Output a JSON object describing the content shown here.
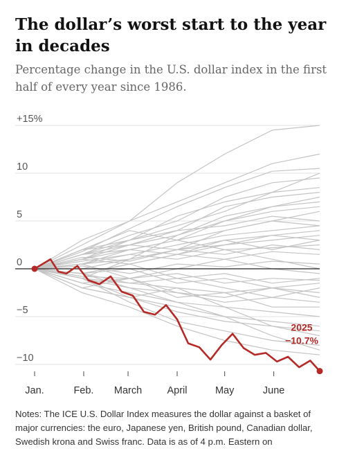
{
  "header": {
    "title": "The dollar’s worst start to the year in decades",
    "subtitle": "Percentage change in the U.S. dollar index in the first half of every year since 1986."
  },
  "notes": "Notes: The ICE U.S. Dollar Index measures the dollar against a basket of major currencies: the euro, Japanese yen, British pound, Canadian dollar, Swedish krona and Swiss franc. Data is as of 4 p.m. Eastern on",
  "colors": {
    "highlight": "#b52a27",
    "background_series": "#c4c4c4",
    "zero_line": "#222222",
    "grid": "#e2e2e2"
  },
  "chart_data": {
    "type": "line",
    "title": "The dollar’s worst start to the year in decades",
    "xlabel": "",
    "ylabel": "",
    "x_tick_labels": [
      "Jan.",
      "Feb.",
      "March",
      "April",
      "May",
      "June"
    ],
    "y_ticks": [
      -10,
      -5,
      0,
      5,
      10,
      15
    ],
    "y_tick_labels": [
      "−10",
      "−5",
      "0",
      "5",
      "10",
      "+15%"
    ],
    "ylim": [
      -11,
      16
    ],
    "xlim_days": [
      0,
      180
    ],
    "grid": true,
    "highlight_series": {
      "name": "2025",
      "end_label_year": "2025",
      "end_label_value": "−10.7%",
      "x": [
        0,
        5,
        10,
        15,
        20,
        27,
        34,
        41,
        48,
        55,
        62,
        69,
        76,
        83,
        90,
        97,
        104,
        111,
        118,
        125,
        132,
        139,
        146,
        153,
        160,
        167,
        174,
        180
      ],
      "y": [
        0,
        0.5,
        1.0,
        -0.3,
        -0.5,
        0.3,
        -1.2,
        -1.6,
        -0.8,
        -2.4,
        -2.8,
        -4.5,
        -4.8,
        -3.8,
        -5.3,
        -7.8,
        -8.2,
        -9.5,
        -8.0,
        -6.8,
        -8.3,
        -9.0,
        -8.8,
        -9.7,
        -9.2,
        -10.3,
        -9.6,
        -10.7
      ]
    },
    "background_series": [
      {
        "x": [
          0,
          30,
          60,
          90,
          120,
          150,
          180
        ],
        "y": [
          0,
          2.5,
          5.0,
          9.0,
          12.0,
          14.5,
          15.0
        ]
      },
      {
        "x": [
          0,
          30,
          60,
          90,
          120,
          150,
          180
        ],
        "y": [
          0,
          1.8,
          4.2,
          6.5,
          8.5,
          10.2,
          10.5
        ]
      },
      {
        "x": [
          0,
          30,
          60,
          90,
          120,
          150,
          180
        ],
        "y": [
          0,
          1.5,
          3.5,
          5.0,
          7.5,
          9.0,
          9.5
        ]
      },
      {
        "x": [
          0,
          30,
          60,
          90,
          120,
          150,
          180
        ],
        "y": [
          0,
          2.0,
          3.0,
          4.5,
          6.0,
          8.0,
          8.5
        ]
      },
      {
        "x": [
          0,
          30,
          60,
          90,
          120,
          150,
          180
        ],
        "y": [
          0,
          1.0,
          2.5,
          3.5,
          5.5,
          6.5,
          7.0
        ]
      },
      {
        "x": [
          0,
          30,
          60,
          90,
          120,
          150,
          180
        ],
        "y": [
          0,
          1.5,
          2.0,
          3.0,
          4.0,
          5.0,
          6.0
        ]
      },
      {
        "x": [
          0,
          30,
          60,
          90,
          120,
          150,
          180
        ],
        "y": [
          0,
          0.5,
          1.5,
          2.5,
          3.5,
          4.0,
          4.5
        ]
      },
      {
        "x": [
          0,
          30,
          60,
          90,
          120,
          150,
          180
        ],
        "y": [
          0,
          1.2,
          0.8,
          2.0,
          2.5,
          3.0,
          3.5
        ]
      },
      {
        "x": [
          0,
          30,
          60,
          90,
          120,
          150,
          180
        ],
        "y": [
          0,
          0.8,
          1.5,
          1.0,
          2.0,
          2.2,
          2.5
        ]
      },
      {
        "x": [
          0,
          30,
          60,
          90,
          120,
          150,
          180
        ],
        "y": [
          0,
          -0.5,
          0.5,
          1.5,
          1.0,
          1.8,
          1.5
        ]
      },
      {
        "x": [
          0,
          30,
          60,
          90,
          120,
          150,
          180
        ],
        "y": [
          0,
          0.3,
          -0.5,
          0.5,
          0.2,
          0.8,
          0.5
        ]
      },
      {
        "x": [
          0,
          30,
          60,
          90,
          120,
          150,
          180
        ],
        "y": [
          0,
          -0.8,
          -1.0,
          -0.5,
          -1.5,
          -1.0,
          -1.2
        ]
      },
      {
        "x": [
          0,
          30,
          60,
          90,
          120,
          150,
          180
        ],
        "y": [
          0,
          -1.0,
          -1.5,
          -2.0,
          -2.5,
          -2.0,
          -2.5
        ]
      },
      {
        "x": [
          0,
          30,
          60,
          90,
          120,
          150,
          180
        ],
        "y": [
          0,
          -0.5,
          -2.0,
          -2.5,
          -3.5,
          -3.0,
          -3.5
        ]
      },
      {
        "x": [
          0,
          30,
          60,
          90,
          120,
          150,
          180
        ],
        "y": [
          0,
          -1.5,
          -2.5,
          -3.5,
          -4.0,
          -4.5,
          -5.0
        ]
      },
      {
        "x": [
          0,
          30,
          60,
          90,
          120,
          150,
          180
        ],
        "y": [
          0,
          -2.0,
          -3.0,
          -4.5,
          -5.5,
          -6.0,
          -6.5
        ]
      },
      {
        "x": [
          0,
          30,
          60,
          90,
          120,
          150,
          180
        ],
        "y": [
          0,
          -1.0,
          -3.5,
          -5.5,
          -6.5,
          -7.5,
          -8.0
        ]
      },
      {
        "x": [
          0,
          30,
          60,
          90,
          120,
          150,
          180
        ],
        "y": [
          0,
          -2.5,
          -4.0,
          -6.0,
          -7.5,
          -8.5,
          -9.0
        ]
      },
      {
        "x": [
          0,
          30,
          60,
          90,
          120,
          150,
          180
        ],
        "y": [
          0,
          2.0,
          4.0,
          3.0,
          2.0,
          1.0,
          0.0
        ]
      },
      {
        "x": [
          0,
          30,
          60,
          90,
          120,
          150,
          180
        ],
        "y": [
          0,
          -1.0,
          1.0,
          3.5,
          5.0,
          6.5,
          7.5
        ]
      },
      {
        "x": [
          0,
          30,
          60,
          90,
          120,
          150,
          180
        ],
        "y": [
          0,
          1.0,
          3.0,
          5.5,
          7.0,
          8.0,
          10.0
        ]
      },
      {
        "x": [
          0,
          30,
          60,
          90,
          120,
          150,
          180
        ],
        "y": [
          0,
          -2.0,
          -3.0,
          -2.0,
          -4.0,
          -6.0,
          -7.0
        ]
      },
      {
        "x": [
          0,
          30,
          60,
          90,
          120,
          150,
          180
        ],
        "y": [
          0,
          0.5,
          -1.0,
          -3.0,
          -2.5,
          -4.0,
          -4.0
        ]
      },
      {
        "x": [
          0,
          30,
          60,
          90,
          120,
          150,
          180
        ],
        "y": [
          0,
          1.0,
          2.0,
          1.5,
          3.0,
          3.5,
          4.0
        ]
      },
      {
        "x": [
          0,
          30,
          60,
          90,
          120,
          150,
          180
        ],
        "y": [
          0,
          -0.5,
          0.5,
          -1.0,
          -2.0,
          -3.0,
          -2.0
        ]
      },
      {
        "x": [
          0,
          30,
          60,
          90,
          120,
          150,
          180
        ],
        "y": [
          0,
          1.5,
          3.0,
          4.0,
          4.5,
          5.5,
          5.0
        ]
      },
      {
        "x": [
          0,
          30,
          60,
          90,
          120,
          150,
          180
        ],
        "y": [
          0,
          -1.5,
          -1.0,
          0.0,
          1.0,
          0.0,
          -0.5
        ]
      },
      {
        "x": [
          0,
          30,
          60,
          90,
          120,
          150,
          180
        ],
        "y": [
          0,
          2.0,
          2.5,
          4.0,
          6.5,
          7.5,
          8.0
        ]
      },
      {
        "x": [
          0,
          30,
          60,
          90,
          120,
          150,
          180
        ],
        "y": [
          0,
          -1.0,
          -2.0,
          -3.5,
          -5.0,
          -5.5,
          -6.0
        ]
      },
      {
        "x": [
          0,
          30,
          60,
          90,
          120,
          150,
          180
        ],
        "y": [
          0,
          0.5,
          1.0,
          2.0,
          3.0,
          2.0,
          3.0
        ]
      },
      {
        "x": [
          0,
          30,
          60,
          90,
          120,
          150,
          180
        ],
        "y": [
          0,
          -0.5,
          -1.5,
          -1.0,
          -0.5,
          -1.5,
          -1.0
        ]
      },
      {
        "x": [
          0,
          30,
          60,
          90,
          120,
          150,
          180
        ],
        "y": [
          0,
          1.5,
          2.5,
          2.0,
          4.0,
          5.0,
          4.5
        ]
      },
      {
        "x": [
          0,
          30,
          60,
          90,
          120,
          150,
          180
        ],
        "y": [
          0,
          -2.0,
          -1.0,
          -2.5,
          -3.0,
          -2.0,
          -3.0
        ]
      },
      {
        "x": [
          0,
          30,
          60,
          90,
          120,
          150,
          180
        ],
        "y": [
          0,
          0.0,
          1.0,
          2.0,
          1.5,
          2.5,
          2.0
        ]
      },
      {
        "x": [
          0,
          30,
          60,
          90,
          120,
          150,
          180
        ],
        "y": [
          0,
          3.0,
          5.0,
          7.0,
          9.0,
          11.0,
          12.0
        ]
      },
      {
        "x": [
          0,
          30,
          60,
          90,
          120,
          150,
          180
        ],
        "y": [
          0,
          -1.0,
          -3.0,
          -4.0,
          -5.0,
          -7.0,
          -8.5
        ]
      },
      {
        "x": [
          0,
          30,
          60,
          90,
          120,
          150,
          180
        ],
        "y": [
          0,
          0.5,
          2.0,
          3.0,
          5.0,
          6.0,
          6.5
        ]
      },
      {
        "x": [
          0,
          30,
          60,
          90,
          120,
          150,
          180
        ],
        "y": [
          0,
          -0.5,
          0.0,
          -1.5,
          -1.0,
          -2.0,
          -1.5
        ]
      },
      {
        "x": [
          0,
          30,
          60,
          90,
          120,
          150,
          180
        ],
        "y": [
          0,
          1.0,
          0.5,
          1.5,
          2.5,
          3.5,
          3.0
        ]
      }
    ]
  }
}
